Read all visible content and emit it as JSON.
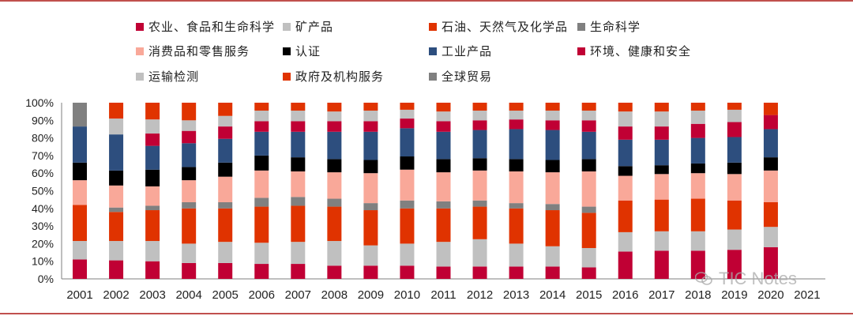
{
  "chart_data": {
    "type": "bar",
    "stacked": true,
    "categories": [
      "2001",
      "2002",
      "2003",
      "2004",
      "2005",
      "2006",
      "2007",
      "2008",
      "2009",
      "2010",
      "2011",
      "2012",
      "2013",
      "2014",
      "2015",
      "2016",
      "2017",
      "2018",
      "2019",
      "2020",
      "2021"
    ],
    "yticks": [
      "0%",
      "10%",
      "20%",
      "30%",
      "40%",
      "50%",
      "60%",
      "70%",
      "80%",
      "90%",
      "100%"
    ],
    "ylim": [
      0,
      100
    ],
    "series": [
      {
        "name": "农业、食品和生命科学",
        "color": "#c00034",
        "values": [
          11,
          10.5,
          10,
          9,
          9,
          8.5,
          8.5,
          7.5,
          7.5,
          7.5,
          7,
          7,
          7,
          7,
          6.5,
          15.5,
          16,
          16,
          16.5,
          18,
          null
        ]
      },
      {
        "name": "运输检测",
        "color": "#c0c0c0",
        "values": [
          10.5,
          11,
          11.5,
          11,
          12,
          12,
          12.5,
          14,
          11.5,
          12.5,
          14,
          15.5,
          13,
          11.5,
          11,
          11,
          11,
          11,
          11.5,
          11.5,
          null
        ]
      },
      {
        "name": "政府及机构服务",
        "color": "#e03300",
        "values": [
          20.5,
          16.5,
          17.5,
          20,
          19,
          20.5,
          20.5,
          19.5,
          20,
          20,
          19,
          18.5,
          20,
          20.5,
          20,
          18,
          18,
          18.5,
          16.5,
          14,
          null
        ]
      },
      {
        "name": "生命科学",
        "color": "#808080",
        "values": [
          0,
          2.5,
          2.5,
          3.5,
          3.5,
          5,
          5,
          4.5,
          4,
          4.5,
          4,
          3.5,
          3,
          3.5,
          3.5,
          0,
          0,
          0,
          0,
          0,
          null
        ]
      },
      {
        "name": "消费品和零售服务",
        "color": "#f9a899",
        "values": [
          14,
          12.5,
          11,
          12.5,
          14.5,
          15.5,
          14.5,
          15,
          17,
          17.5,
          16.5,
          17,
          18,
          18,
          20,
          14,
          14.5,
          14.5,
          15,
          18,
          null
        ]
      },
      {
        "name": "认证",
        "color": "#000000",
        "values": [
          10,
          8.5,
          9.5,
          7.5,
          8,
          8.5,
          8,
          7.5,
          7.5,
          7.5,
          7.5,
          7,
          7,
          7,
          7,
          5.5,
          5,
          5.5,
          6.5,
          7.5,
          null
        ]
      },
      {
        "name": "工业产品",
        "color": "#2d4e7e",
        "values": [
          20.5,
          20.5,
          13.5,
          13.5,
          13.5,
          13.5,
          14.5,
          15.5,
          16,
          16,
          15.5,
          16,
          17,
          17,
          15.5,
          15,
          14.5,
          14.5,
          14.5,
          16,
          null
        ]
      },
      {
        "name": "环境、健康和安全",
        "color": "#c00034",
        "values": [
          0,
          0,
          7,
          7,
          7,
          6,
          6,
          6,
          6,
          5.5,
          6,
          5.5,
          5.5,
          5.5,
          6.5,
          7.5,
          7.5,
          8,
          8.5,
          8,
          null
        ]
      },
      {
        "name": "矿产品",
        "color": "#c0c0c0",
        "values": [
          0,
          9,
          8,
          6,
          6,
          6,
          6,
          5.5,
          6,
          5,
          5.5,
          5.5,
          5,
          5.5,
          5.5,
          8.5,
          8.5,
          7.5,
          7,
          0,
          null
        ]
      },
      {
        "name": "石油、天然气及化学品",
        "color": "#e03300",
        "values": [
          0,
          9,
          9.5,
          10,
          7.5,
          4.5,
          4.5,
          5,
          4.5,
          4,
          5,
          4.5,
          4.5,
          4.5,
          4.5,
          5,
          5,
          4.5,
          4,
          7,
          null
        ]
      },
      {
        "name": "全球贸易",
        "color": "#808080",
        "values": [
          13.5,
          0,
          0,
          0,
          0,
          0,
          0,
          0,
          0,
          0,
          0,
          0,
          0,
          0,
          0,
          0,
          0,
          0,
          0,
          0,
          null
        ]
      }
    ]
  },
  "legend": [
    {
      "label": "农业、食品和生命科学",
      "color": "#c00034"
    },
    {
      "label": "矿产品",
      "color": "#c0c0c0"
    },
    {
      "label": "石油、天然气及化学品",
      "color": "#e03300"
    },
    {
      "label": "生命科学",
      "color": "#808080"
    },
    {
      "label": "消费品和零售服务",
      "color": "#f9a899"
    },
    {
      "label": "认证",
      "color": "#000000"
    },
    {
      "label": "工业产品",
      "color": "#2d4e7e"
    },
    {
      "label": "环境、健康和安全",
      "color": "#c00034"
    },
    {
      "label": "运输检测",
      "color": "#c0c0c0"
    },
    {
      "label": "政府及机构服务",
      "color": "#e03300"
    },
    {
      "label": "全球贸易",
      "color": "#808080"
    }
  ],
  "watermark": "TIC Notes"
}
